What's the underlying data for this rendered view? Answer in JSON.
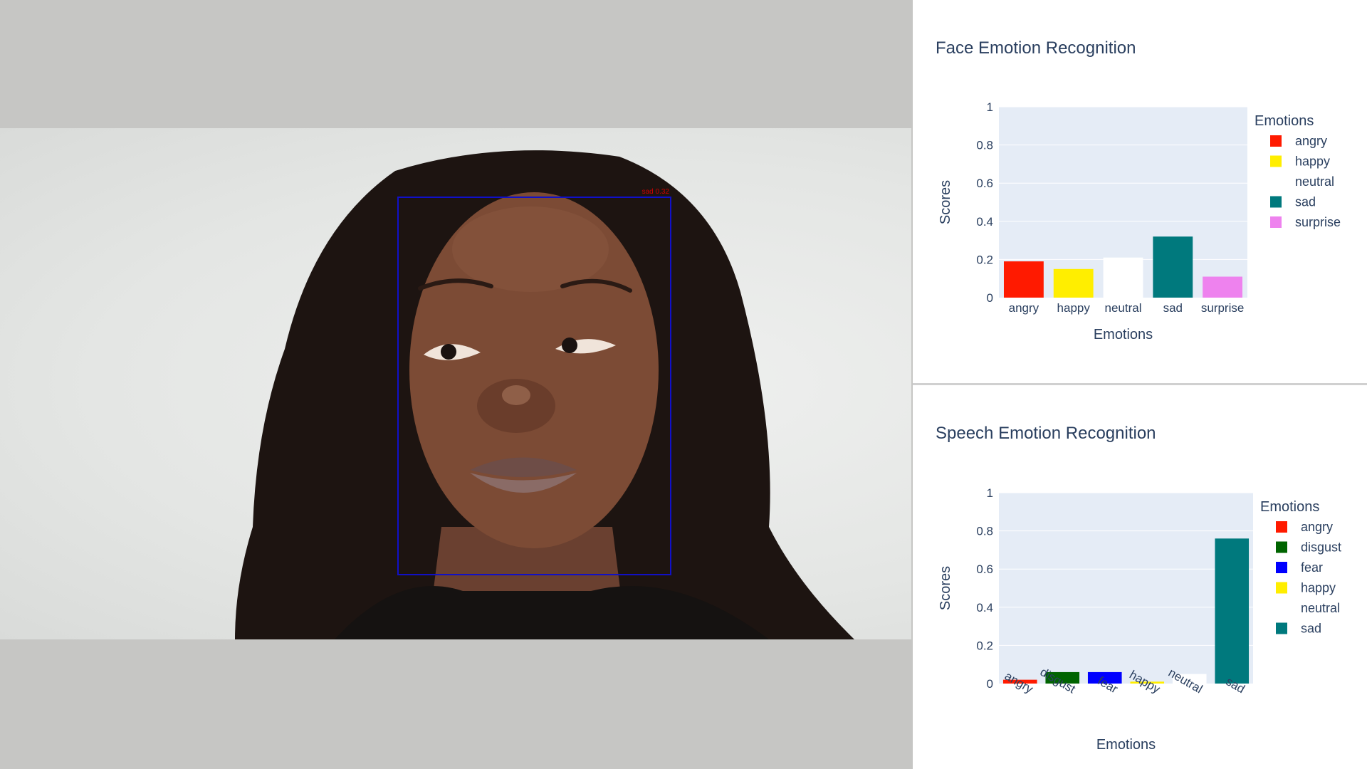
{
  "video": {
    "face_box_label": "sad 0.32",
    "face_box_color": "#1010c8",
    "face_box_label_color": "#d00000"
  },
  "chart_data": [
    {
      "type": "bar",
      "title": "Face Emotion Recognition",
      "xlabel": "Emotions",
      "ylabel": "Scores",
      "ylim": [
        0,
        1
      ],
      "yticks": [
        0,
        0.2,
        0.4,
        0.6,
        0.8,
        1
      ],
      "ytick_labels": [
        "0",
        "0.2",
        "0.4",
        "0.6",
        "0.8",
        "1"
      ],
      "x_tick_rotation": "none",
      "grid": true,
      "legend_title": "Emotions",
      "legend_position": "right",
      "categories": [
        "angry",
        "happy",
        "neutral",
        "sad",
        "surprise"
      ],
      "values": [
        0.19,
        0.15,
        0.21,
        0.32,
        0.11
      ],
      "colors": [
        "#ff1a00",
        "#ffee00",
        "#ffffff",
        "#00797d",
        "#ee82ee"
      ]
    },
    {
      "type": "bar",
      "title": "Speech Emotion Recognition",
      "xlabel": "Emotions",
      "ylabel": "Scores",
      "ylim": [
        0,
        1
      ],
      "yticks": [
        0,
        0.2,
        0.4,
        0.6,
        0.8,
        1
      ],
      "ytick_labels": [
        "0",
        "0.2",
        "0.4",
        "0.6",
        "0.8",
        "1"
      ],
      "x_tick_rotation": "angled",
      "grid": true,
      "legend_title": "Emotions",
      "legend_position": "right",
      "categories": [
        "angry",
        "disgust",
        "fear",
        "happy",
        "neutral",
        "sad"
      ],
      "values": [
        0.02,
        0.06,
        0.06,
        0.01,
        0.05,
        0.76
      ],
      "colors": [
        "#ff1a00",
        "#006400",
        "#0000ff",
        "#ffee00",
        "#ffffff",
        "#00797d"
      ]
    }
  ]
}
